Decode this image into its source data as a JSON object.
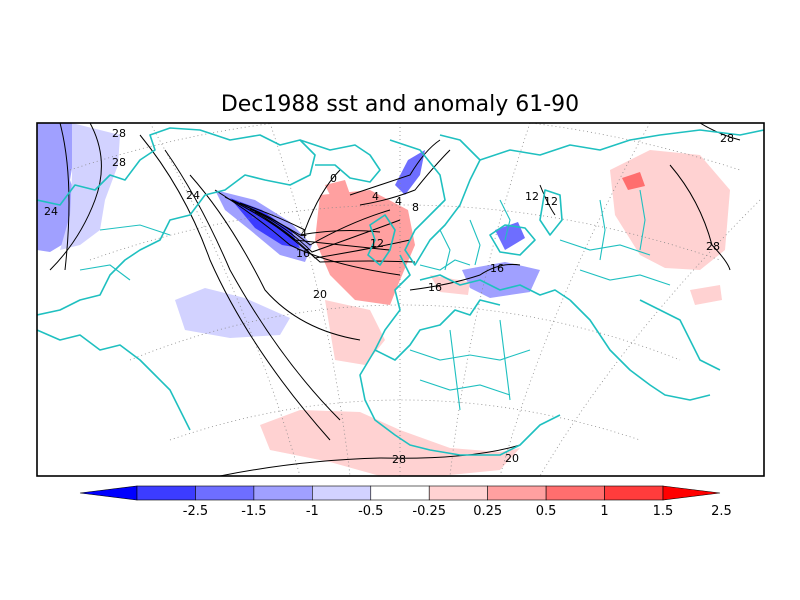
{
  "title": "Dec1988 sst and anomaly 61-90",
  "contour_labels": [
    "28",
    "28",
    "24",
    "24",
    "20",
    "16",
    "16",
    "16",
    "12",
    "12",
    "8",
    "4",
    "4",
    "4",
    "0",
    "12",
    "28",
    "28",
    "28",
    "20"
  ],
  "colorbar": {
    "tick_labels": [
      "-2.5",
      "-1.5",
      "-1",
      "-0.5",
      "-0.25",
      "0.25",
      "0.5",
      "1",
      "1.5",
      "2.5"
    ],
    "colors": [
      "#0000ff",
      "#3c3cff",
      "#6e6eff",
      "#a0a0ff",
      "#d2d2ff",
      "#ffffff",
      "#ffd2d2",
      "#ffa0a0",
      "#ff6e6e",
      "#ff3c3c",
      "#ff0000"
    ]
  },
  "colors": {
    "coastline": "#1fc0c0",
    "contour": "#000000",
    "graticule": "#8a8a8a"
  }
}
